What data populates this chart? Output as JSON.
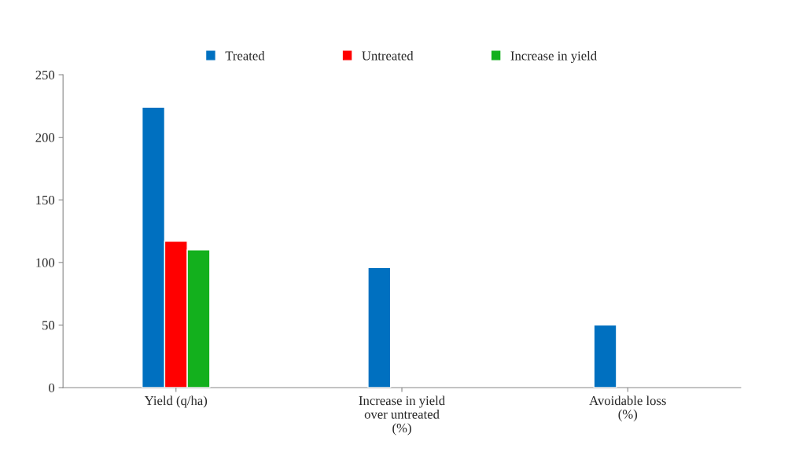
{
  "chart_data": {
    "type": "bar",
    "categories": [
      "Yield (q/ha)",
      "Increase in yield\nover untreated\n(%)",
      "Avoidable loss\n(%)"
    ],
    "series": [
      {
        "name": "Treated",
        "color": "#0070c0",
        "values": [
          224,
          96,
          50
        ]
      },
      {
        "name": "Untreated",
        "color": "#ff0000",
        "values": [
          117,
          null,
          null
        ]
      },
      {
        "name": "Increase in yield",
        "color": "#13b01d",
        "values": [
          110,
          null,
          null
        ]
      }
    ],
    "ylim": [
      0,
      250
    ],
    "yticks": [
      0,
      50,
      100,
      150,
      200,
      250
    ],
    "grid": false,
    "legend": "top"
  }
}
